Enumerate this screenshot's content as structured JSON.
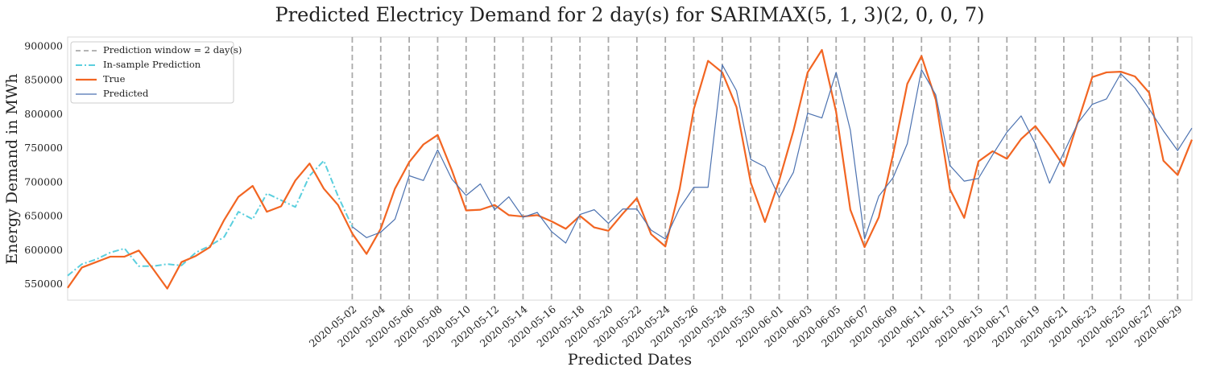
{
  "chart_data": {
    "type": "line",
    "title": "Predicted Electricy Demand for 2 day(s) for SARIMAX(5, 1, 3)(2, 0, 0, 7)",
    "x_label": "Predicted Dates",
    "y_label": "Energy Demand in MWh",
    "x": [
      "2020-04-12",
      "2020-04-13",
      "2020-04-14",
      "2020-04-15",
      "2020-04-16",
      "2020-04-17",
      "2020-04-18",
      "2020-04-19",
      "2020-04-20",
      "2020-04-21",
      "2020-04-22",
      "2020-04-23",
      "2020-04-24",
      "2020-04-25",
      "2020-04-26",
      "2020-04-27",
      "2020-04-28",
      "2020-04-29",
      "2020-04-30",
      "2020-05-01",
      "2020-05-02",
      "2020-05-03",
      "2020-05-04",
      "2020-05-05",
      "2020-05-06",
      "2020-05-07",
      "2020-05-08",
      "2020-05-09",
      "2020-05-10",
      "2020-05-11",
      "2020-05-12",
      "2020-05-13",
      "2020-05-14",
      "2020-05-15",
      "2020-05-16",
      "2020-05-17",
      "2020-05-18",
      "2020-05-19",
      "2020-05-20",
      "2020-05-21",
      "2020-05-22",
      "2020-05-23",
      "2020-05-24",
      "2020-05-25",
      "2020-05-26",
      "2020-05-27",
      "2020-05-28",
      "2020-05-29",
      "2020-05-30",
      "2020-05-31",
      "2020-06-01",
      "2020-06-02",
      "2020-06-03",
      "2020-06-04",
      "2020-06-05",
      "2020-06-06",
      "2020-06-07",
      "2020-06-08",
      "2020-06-09",
      "2020-06-10",
      "2020-06-11",
      "2020-06-12",
      "2020-06-13",
      "2020-06-14",
      "2020-06-15",
      "2020-06-16",
      "2020-06-17",
      "2020-06-18",
      "2020-06-19",
      "2020-06-20",
      "2020-06-21",
      "2020-06-22",
      "2020-06-23",
      "2020-06-24",
      "2020-06-25",
      "2020-06-26",
      "2020-06-27",
      "2020-06-28",
      "2020-06-29",
      "2020-06-30"
    ],
    "xlim": [
      "2020-04-12",
      "2020-06-30"
    ],
    "xticks": [
      "2020-05-02",
      "2020-05-04",
      "2020-05-06",
      "2020-05-08",
      "2020-05-10",
      "2020-05-12",
      "2020-05-14",
      "2020-05-16",
      "2020-05-18",
      "2020-05-20",
      "2020-05-22",
      "2020-05-24",
      "2020-05-26",
      "2020-05-28",
      "2020-05-30",
      "2020-06-01",
      "2020-06-03",
      "2020-06-05",
      "2020-06-07",
      "2020-06-09",
      "2020-06-11",
      "2020-06-13",
      "2020-06-15",
      "2020-06-17",
      "2020-06-19",
      "2020-06-21",
      "2020-06-23",
      "2020-06-25",
      "2020-06-27",
      "2020-06-29"
    ],
    "window_lines": true,
    "window_color": "#aaaaaa",
    "window_label": "Prediction window = 2 day(s)",
    "ylim": [
      527000,
      914000
    ],
    "yticks": [
      550000,
      600000,
      650000,
      700000,
      750000,
      800000,
      850000,
      900000
    ],
    "grid": false,
    "legend": "upper left",
    "series": [
      {
        "name": "In-sample Prediction",
        "color": "#5bcfde",
        "dash": "dashdot",
        "width": 2,
        "values": [
          563000,
          580000,
          587000,
          597000,
          603000,
          577000,
          577000,
          580000,
          578000,
          597000,
          607000,
          620000,
          657000,
          646000,
          684000,
          674000,
          664000,
          710000,
          732000,
          680000,
          635000,
          null,
          null,
          null,
          null,
          null,
          null,
          null,
          null,
          null,
          null,
          null,
          null,
          null,
          null,
          null,
          null,
          null,
          null,
          null,
          null,
          null,
          null,
          null,
          null,
          null,
          null,
          null,
          null,
          null,
          null,
          null,
          null,
          null,
          null,
          null,
          null,
          null,
          null,
          null,
          null,
          null,
          null,
          null,
          null,
          null,
          null,
          null,
          null,
          null,
          null,
          null,
          null,
          null,
          null,
          null,
          null,
          null,
          null,
          null
        ]
      },
      {
        "name": "True",
        "color": "#f26522",
        "dash": "solid",
        "width": 2.2,
        "values": [
          545000,
          575000,
          583000,
          591000,
          591000,
          600000,
          573000,
          544000,
          583000,
          592000,
          605000,
          645000,
          679000,
          695000,
          657000,
          665000,
          703000,
          728000,
          691000,
          667000,
          625000,
          595000,
          632000,
          691000,
          730000,
          756000,
          770000,
          718000,
          659000,
          660000,
          667000,
          652000,
          650000,
          652000,
          643000,
          632000,
          651000,
          634000,
          629000,
          654000,
          677000,
          624000,
          606000,
          690000,
          808000,
          879000,
          862000,
          811000,
          700000,
          642000,
          703000,
          776000,
          862000,
          895000,
          804000,
          660000,
          605000,
          649000,
          741000,
          845000,
          886000,
          822000,
          690000,
          648000,
          731000,
          746000,
          735000,
          764000,
          783000,
          755000,
          724000,
          790000,
          855000,
          862000,
          863000,
          856000,
          832000,
          732000,
          711000,
          763000
        ]
      },
      {
        "name": "Predicted",
        "color": "#4c72b0",
        "dash": "solid",
        "width": 1.2,
        "values": [
          null,
          null,
          null,
          null,
          null,
          null,
          null,
          null,
          null,
          null,
          null,
          null,
          null,
          null,
          null,
          null,
          null,
          null,
          null,
          null,
          635000,
          619000,
          627000,
          646000,
          710000,
          703000,
          748000,
          705000,
          681000,
          698000,
          660000,
          679000,
          649000,
          656000,
          628000,
          611000,
          653000,
          660000,
          640000,
          661000,
          661000,
          630000,
          617000,
          662000,
          693000,
          693000,
          873000,
          835000,
          734000,
          723000,
          678000,
          715000,
          802000,
          795000,
          862000,
          777000,
          617000,
          680000,
          707000,
          757000,
          866000,
          829000,
          725000,
          702000,
          706000,
          741000,
          774000,
          798000,
          757000,
          699000,
          744000,
          788000,
          815000,
          823000,
          860000,
          839000,
          808000,
          776000,
          747000,
          780000
        ]
      }
    ]
  }
}
